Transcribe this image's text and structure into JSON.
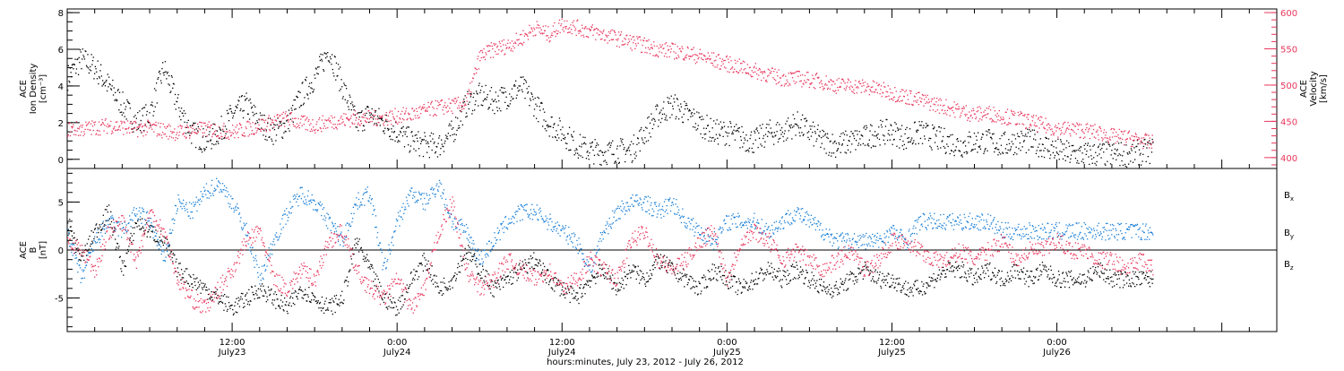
{
  "chart_data": [
    {
      "type": "scatter",
      "panel": "top",
      "ylabel_lines": [
        "ACE",
        "Ion Density",
        "[cm⁻³]"
      ],
      "y2label_lines": [
        "ACE",
        "Velocity",
        "[km/s]"
      ],
      "ylim": [
        -0.5,
        8.2
      ],
      "y2lim": [
        385,
        605
      ],
      "yticks": [
        "0",
        "2",
        "4",
        "6",
        "8"
      ],
      "y2ticks": [
        "400",
        "450",
        "500",
        "550",
        "600"
      ],
      "grid": false,
      "colors": {
        "density": "#000000",
        "velocity": "#e8365d"
      },
      "series": [
        {
          "key": "density",
          "axis": "left",
          "x": [
            0,
            1,
            2,
            3,
            4,
            5,
            6,
            7,
            8,
            9,
            10,
            11,
            12,
            13,
            14,
            15,
            16,
            17,
            18,
            19,
            20,
            21,
            22,
            23,
            24,
            25,
            26,
            27,
            28,
            29,
            30,
            31,
            32,
            33,
            34,
            35,
            36,
            37,
            38,
            39,
            40,
            41,
            42,
            43,
            44,
            45,
            46,
            47,
            48,
            49,
            50,
            51,
            52,
            53,
            54,
            55,
            56,
            57,
            58,
            59,
            60,
            61,
            62,
            63,
            64,
            65,
            66,
            67,
            68,
            69,
            70,
            71,
            72,
            73,
            74,
            75,
            76,
            77,
            78,
            79
          ],
          "values": [
            4.5,
            5.5,
            5,
            4,
            3,
            2,
            2.5,
            5,
            3,
            1.5,
            1,
            1.5,
            2.5,
            3,
            2,
            1.5,
            2,
            3.5,
            4.5,
            6,
            4,
            2,
            2.5,
            2,
            1.5,
            1,
            0.8,
            0.8,
            1.5,
            3,
            3.5,
            3.2,
            3.5,
            4,
            3,
            2,
            1.5,
            0.8,
            0.5,
            0.4,
            0.5,
            0.5,
            1.5,
            2.5,
            3,
            2.5,
            2,
            1.5,
            1.5,
            1.2,
            1,
            1.5,
            1.5,
            2,
            1.5,
            1,
            0.8,
            1,
            1.2,
            1.5,
            1.5,
            1.2,
            1.5,
            1.2,
            1,
            0.8,
            1,
            1,
            0.8,
            1,
            1,
            0.8,
            0.5,
            0.3,
            0.3,
            0.3,
            0.3,
            0.3,
            0.4,
            0.5
          ]
        },
        {
          "key": "velocity",
          "axis": "right",
          "x": [
            0,
            1,
            2,
            3,
            4,
            5,
            6,
            7,
            8,
            9,
            10,
            11,
            12,
            13,
            14,
            15,
            16,
            17,
            18,
            19,
            20,
            21,
            22,
            23,
            24,
            25,
            26,
            27,
            28,
            29,
            30,
            31,
            32,
            33,
            34,
            35,
            36,
            37,
            38,
            39,
            40,
            41,
            42,
            43,
            44,
            45,
            46,
            47,
            48,
            49,
            50,
            51,
            52,
            53,
            54,
            55,
            56,
            57,
            58,
            59,
            60,
            61,
            62,
            63,
            64,
            65,
            66,
            67,
            68,
            69,
            70,
            71,
            72,
            73,
            74,
            75,
            76,
            77,
            78,
            79
          ],
          "values": [
            440,
            440,
            442,
            445,
            443,
            440,
            442,
            438,
            435,
            438,
            440,
            438,
            436,
            440,
            445,
            450,
            455,
            448,
            445,
            450,
            452,
            455,
            455,
            455,
            458,
            460,
            465,
            470,
            472,
            475,
            540,
            550,
            555,
            565,
            580,
            570,
            585,
            580,
            575,
            570,
            565,
            560,
            555,
            550,
            548,
            545,
            540,
            535,
            530,
            525,
            520,
            515,
            510,
            510,
            508,
            505,
            500,
            500,
            498,
            495,
            490,
            485,
            480,
            475,
            470,
            465,
            460,
            462,
            458,
            455,
            450,
            445,
            440,
            440,
            438,
            435,
            430,
            428,
            425,
            420
          ]
        }
      ]
    },
    {
      "type": "scatter",
      "panel": "bottom",
      "ylabel_lines": [
        "ACE",
        "B",
        "[nT]"
      ],
      "ylim": [
        -8.5,
        8.5
      ],
      "yticks": [
        "-5",
        "0",
        "5"
      ],
      "xticks": [
        {
          "x": 12,
          "top": "12:00",
          "bottom": "July23"
        },
        {
          "x": 24,
          "top": "0:00",
          "bottom": "July24"
        },
        {
          "x": 36,
          "top": "12:00",
          "bottom": "July24"
        },
        {
          "x": 48,
          "top": "0:00",
          "bottom": "July25"
        },
        {
          "x": 60,
          "top": "12:00",
          "bottom": "July25"
        },
        {
          "x": 72,
          "top": "0:00",
          "bottom": "July26"
        }
      ],
      "xlim": [
        0,
        88
      ],
      "xlabel": "hours:minutes, July 23, 2012 - July 26, 2012",
      "grid": false,
      "zero_line": true,
      "legend_position": "right",
      "series": [
        {
          "name": "B",
          "sub": "x",
          "color": "#000000",
          "x": [
            0,
            1,
            2,
            3,
            4,
            5,
            6,
            7,
            8,
            9,
            10,
            11,
            12,
            13,
            14,
            15,
            16,
            17,
            18,
            19,
            20,
            21,
            22,
            23,
            24,
            25,
            26,
            27,
            28,
            29,
            30,
            31,
            32,
            33,
            34,
            35,
            36,
            37,
            38,
            39,
            40,
            41,
            42,
            43,
            44,
            45,
            46,
            47,
            48,
            49,
            50,
            51,
            52,
            53,
            54,
            55,
            56,
            57,
            58,
            59,
            60,
            61,
            62,
            63,
            64,
            65,
            66,
            67,
            68,
            69,
            70,
            71,
            72,
            73,
            74,
            75,
            76,
            77,
            78,
            79
          ],
          "values": [
            3,
            -1,
            2,
            4,
            -2,
            3,
            2,
            1,
            -2,
            -3,
            -4,
            -5,
            -6,
            -5,
            -4,
            -5,
            -6,
            -4,
            -5,
            -6,
            -5,
            1,
            -2,
            -5,
            -6,
            -3,
            -1,
            -4,
            -3,
            0,
            -2,
            -4,
            -3,
            -2,
            -1,
            -3,
            -4,
            -5,
            -3,
            -2,
            -4,
            -2,
            -3,
            -1,
            -2,
            -3,
            -4,
            -2,
            -3,
            -4,
            -3,
            -2,
            -3,
            -2,
            -3,
            -4,
            -4,
            -3,
            -2,
            -3,
            -3,
            -4,
            -4,
            -3,
            -2,
            -2,
            -3,
            -2,
            -3,
            -2,
            -3,
            -2,
            -3,
            -3,
            -3,
            -2,
            -3,
            -3,
            -3,
            -3
          ]
        },
        {
          "name": "B",
          "sub": "y",
          "color": "#1a7fd6",
          "x": [
            0,
            1,
            2,
            3,
            4,
            5,
            6,
            7,
            8,
            9,
            10,
            11,
            12,
            13,
            14,
            15,
            16,
            17,
            18,
            19,
            20,
            21,
            22,
            23,
            24,
            25,
            26,
            27,
            28,
            29,
            30,
            31,
            32,
            33,
            34,
            35,
            36,
            37,
            38,
            39,
            40,
            41,
            42,
            43,
            44,
            45,
            46,
            47,
            48,
            49,
            50,
            51,
            52,
            53,
            54,
            55,
            56,
            57,
            58,
            59,
            60,
            61,
            62,
            63,
            64,
            65,
            66,
            67,
            68,
            69,
            70,
            71,
            72,
            73,
            74,
            75,
            76,
            77,
            78,
            79
          ],
          "values": [
            2,
            -3,
            1,
            3,
            2,
            4,
            3,
            -1,
            5,
            4,
            6,
            7,
            5,
            2,
            -3,
            1,
            4,
            6,
            5,
            3,
            1,
            5,
            6,
            -2,
            3,
            6,
            5,
            7,
            3,
            2,
            -1,
            1,
            3,
            4,
            4,
            3,
            2,
            1,
            -2,
            2,
            4,
            5,
            5,
            4,
            5,
            3,
            2,
            1,
            3,
            3,
            3,
            2,
            3,
            4,
            3,
            2,
            1,
            1,
            1,
            1,
            2,
            1,
            3,
            3,
            3,
            3,
            3,
            3,
            2,
            2,
            2,
            2,
            2,
            2,
            2,
            2,
            2,
            2,
            2,
            2
          ]
        },
        {
          "name": "B",
          "sub": "z",
          "color": "#e8365d",
          "x": [
            0,
            1,
            2,
            3,
            4,
            5,
            6,
            7,
            8,
            9,
            10,
            11,
            12,
            13,
            14,
            15,
            16,
            17,
            18,
            19,
            20,
            21,
            22,
            23,
            24,
            25,
            26,
            27,
            28,
            29,
            30,
            31,
            32,
            33,
            34,
            35,
            36,
            37,
            38,
            39,
            40,
            41,
            42,
            43,
            44,
            45,
            46,
            47,
            48,
            49,
            50,
            51,
            52,
            53,
            54,
            55,
            56,
            57,
            58,
            59,
            60,
            61,
            62,
            63,
            64,
            65,
            66,
            67,
            68,
            69,
            70,
            71,
            72,
            73,
            74,
            75,
            76,
            77,
            78,
            79
          ],
          "values": [
            1,
            0,
            -2,
            2,
            3,
            -1,
            4,
            2,
            -3,
            -5,
            -6,
            -4,
            -2,
            1,
            2,
            -3,
            -4,
            -2,
            -3,
            1,
            2,
            -2,
            -4,
            -5,
            -3,
            -6,
            -4,
            2,
            5,
            -2,
            -4,
            -3,
            -1,
            -2,
            -3,
            -2,
            -4,
            -3,
            -1,
            -2,
            -3,
            1,
            2,
            -1,
            -2,
            -1,
            1,
            2,
            -3,
            1,
            2,
            1,
            -1,
            0,
            -1,
            -2,
            -1,
            0,
            -2,
            -1,
            1,
            1,
            0,
            -1,
            -1,
            0,
            -1,
            0,
            1,
            -1,
            0,
            0,
            1,
            0,
            0,
            -1,
            -1,
            -2,
            -1,
            -2
          ]
        }
      ]
    }
  ]
}
